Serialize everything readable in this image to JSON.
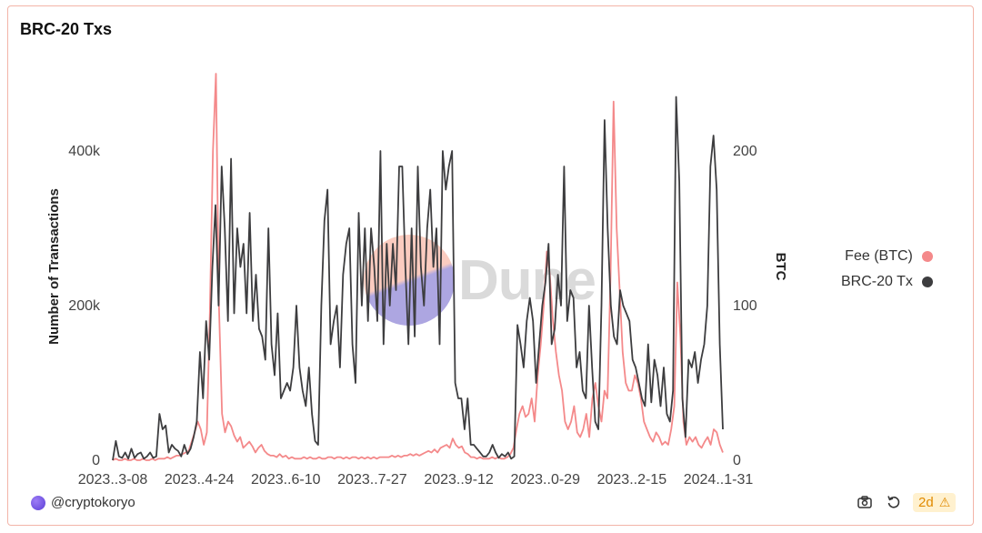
{
  "chart_data": {
    "type": "line",
    "title": "BRC-20 Txs",
    "ylabel_left": "Number of Transactions",
    "ylabel_right": "BTC",
    "x_tick_labels": [
      "2023..3-08",
      "2023..4-24",
      "2023..6-10",
      "2023..7-27",
      "2023..9-12",
      "2023..0-29",
      "2023..2-15",
      "2024..1-31"
    ],
    "ylim_left": [
      0,
      500000
    ],
    "ylim_right": [
      0,
      250
    ],
    "y_ticks_left": [
      {
        "value": 0,
        "label": "0"
      },
      {
        "value": 200000,
        "label": "200k"
      },
      {
        "value": 400000,
        "label": "400k"
      }
    ],
    "y_ticks_right": [
      {
        "value": 0,
        "label": "0"
      },
      {
        "value": 100,
        "label": "100"
      },
      {
        "value": 200,
        "label": "200"
      }
    ],
    "legend_position": "right",
    "grid": false,
    "series": [
      {
        "name": "Fee (BTC)",
        "axis": "right",
        "color": "#f4898a",
        "values": [
          0,
          1,
          0,
          0,
          1,
          0,
          0,
          1,
          0,
          0,
          1,
          0,
          0,
          1,
          0,
          1,
          1,
          1,
          2,
          1,
          2,
          3,
          3,
          4,
          5,
          6,
          12,
          18,
          25,
          20,
          10,
          18,
          95,
          200,
          250,
          100,
          30,
          18,
          25,
          22,
          16,
          12,
          15,
          8,
          10,
          12,
          9,
          5,
          8,
          10,
          6,
          4,
          3,
          3,
          2,
          4,
          2,
          3,
          1,
          2,
          1,
          1,
          1,
          2,
          1,
          2,
          1,
          1,
          2,
          1,
          1,
          2,
          2,
          1,
          2,
          2,
          1,
          2,
          1,
          2,
          2,
          1,
          2,
          1,
          2,
          1,
          2,
          1,
          2,
          2,
          2,
          2,
          3,
          2,
          3,
          2,
          3,
          3,
          4,
          3,
          4,
          3,
          4,
          5,
          6,
          5,
          7,
          5,
          8,
          9,
          10,
          8,
          14,
          10,
          8,
          9,
          5,
          4,
          2,
          2,
          1,
          2,
          1,
          1,
          1,
          2,
          1,
          2,
          1,
          1,
          2,
          4,
          8,
          20,
          30,
          35,
          28,
          30,
          40,
          25,
          55,
          75,
          100,
          135,
          120,
          90,
          70,
          55,
          45,
          25,
          20,
          25,
          35,
          18,
          15,
          20,
          30,
          15,
          40,
          50,
          35,
          25,
          45,
          40,
          120,
          232,
          150,
          110,
          70,
          50,
          45,
          45,
          55,
          50,
          40,
          25,
          20,
          15,
          12,
          18,
          15,
          10,
          12,
          10,
          20,
          35,
          115,
          80,
          25,
          10,
          15,
          12,
          15,
          10,
          8,
          12,
          15,
          10,
          20,
          18,
          10,
          5
        ]
      },
      {
        "name": "BRC-20 Tx",
        "axis": "left",
        "color": "#3d3d3f",
        "values": [
          0,
          25000,
          5000,
          3000,
          10000,
          2000,
          15000,
          3000,
          8000,
          10000,
          2000,
          5000,
          10000,
          3000,
          5000,
          60000,
          40000,
          45000,
          10000,
          20000,
          15000,
          12000,
          5000,
          20000,
          8000,
          15000,
          30000,
          50000,
          140000,
          80000,
          180000,
          130000,
          250000,
          330000,
          200000,
          380000,
          300000,
          180000,
          390000,
          190000,
          300000,
          250000,
          280000,
          190000,
          320000,
          180000,
          240000,
          170000,
          160000,
          130000,
          300000,
          150000,
          110000,
          190000,
          80000,
          90000,
          100000,
          90000,
          120000,
          200000,
          120000,
          90000,
          70000,
          120000,
          60000,
          25000,
          20000,
          200000,
          310000,
          350000,
          150000,
          180000,
          200000,
          120000,
          240000,
          280000,
          300000,
          150000,
          100000,
          320000,
          200000,
          300000,
          180000,
          300000,
          250000,
          180000,
          400000,
          150000,
          280000,
          200000,
          280000,
          220000,
          380000,
          380000,
          250000,
          150000,
          300000,
          160000,
          380000,
          250000,
          200000,
          300000,
          350000,
          250000,
          300000,
          150000,
          400000,
          350000,
          380000,
          400000,
          100000,
          80000,
          80000,
          40000,
          80000,
          20000,
          20000,
          15000,
          10000,
          5000,
          5000,
          10000,
          20000,
          10000,
          3000,
          8000,
          5000,
          10000,
          2000,
          5000,
          175000,
          150000,
          120000,
          180000,
          210000,
          180000,
          100000,
          150000,
          200000,
          230000,
          280000,
          150000,
          170000,
          240000,
          200000,
          380000,
          180000,
          220000,
          210000,
          120000,
          140000,
          90000,
          80000,
          200000,
          120000,
          50000,
          40000,
          200000,
          440000,
          300000,
          200000,
          160000,
          150000,
          220000,
          200000,
          190000,
          180000,
          130000,
          120000,
          100000,
          80000,
          70000,
          150000,
          75000,
          130000,
          110000,
          70000,
          120000,
          60000,
          50000,
          90000,
          470000,
          360000,
          80000,
          30000,
          130000,
          120000,
          140000,
          100000,
          130000,
          150000,
          200000,
          380000,
          420000,
          350000,
          150000,
          40000
        ]
      }
    ]
  },
  "footer": {
    "author": "@cryptokoryo",
    "age_badge": "2d"
  },
  "watermark": {
    "brand": "Dune"
  },
  "icons": {
    "camera": "camera-icon",
    "refresh": "refresh-icon",
    "warning": "warning-icon"
  }
}
